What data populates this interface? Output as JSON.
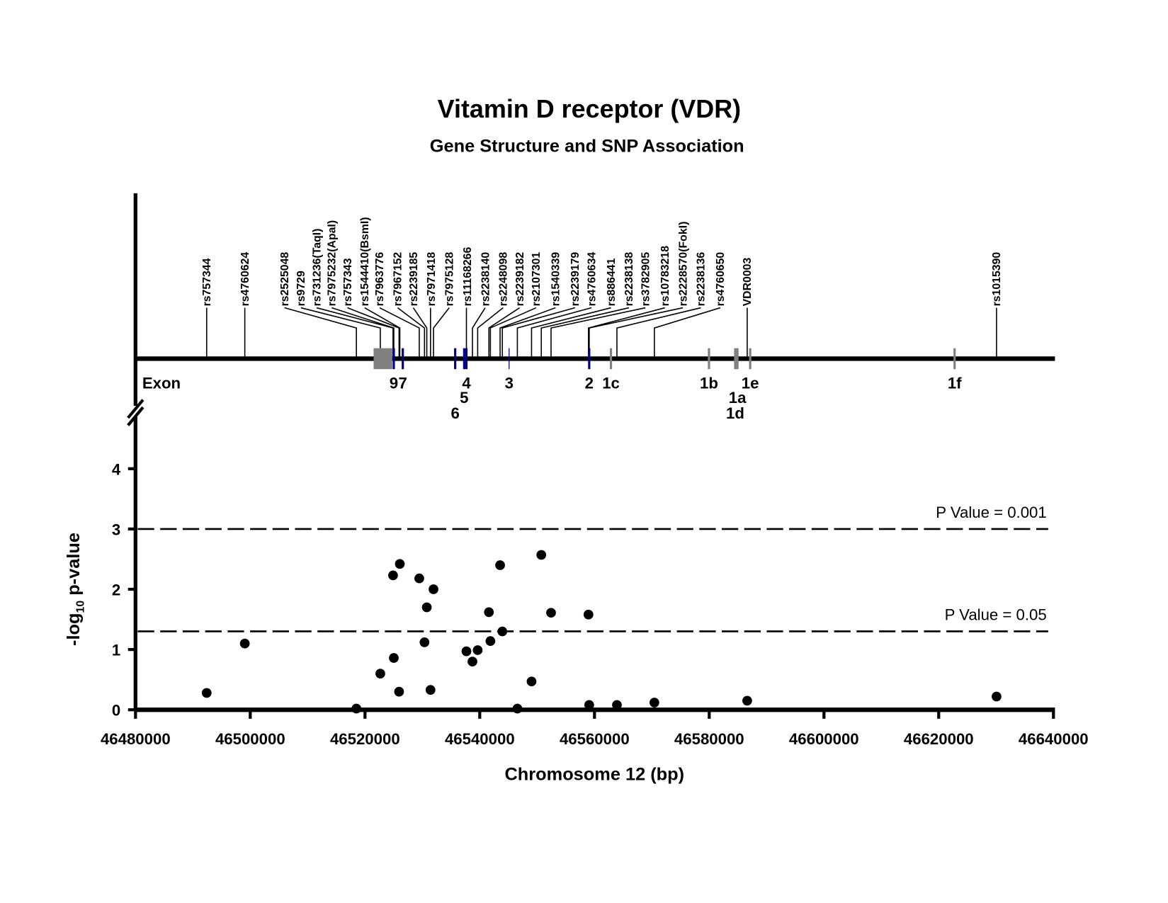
{
  "chart_data": {
    "type": "scatter",
    "title": "Vitamin D receptor (VDR)",
    "subtitle": "Gene Structure and SNP Association",
    "xlabel": "Chromosome 12 (bp)",
    "ylabel_main": "-log",
    "ylabel_sub": "10",
    "ylabel_rest": " p-value",
    "xlim": [
      46480000,
      46640000
    ],
    "ylim": [
      0,
      4.5
    ],
    "x_ticks": [
      46480000,
      46500000,
      46520000,
      46540000,
      46560000,
      46580000,
      46600000,
      46620000,
      46640000
    ],
    "x_tick_labels": [
      "46480000",
      "46500000",
      "46520000",
      "46540000",
      "46560000",
      "46580000",
      "46600000",
      "46620000",
      "46640000"
    ],
    "y_ticks": [
      0,
      1,
      2,
      3,
      4
    ],
    "y_tick_labels": [
      "0",
      "1",
      "2",
      "3",
      "4"
    ],
    "thresholds": [
      {
        "label": "P Value = 0.001",
        "y": 3.0
      },
      {
        "label": "P Value = 0.05",
        "y": 1.301
      }
    ],
    "points": [
      {
        "x": 46492400,
        "y": 0.28
      },
      {
        "x": 46499050,
        "y": 1.1
      },
      {
        "x": 46518500,
        "y": 0.02
      },
      {
        "x": 46522670,
        "y": 0.6
      },
      {
        "x": 46524890,
        "y": 2.23
      },
      {
        "x": 46525020,
        "y": 0.86
      },
      {
        "x": 46525940,
        "y": 0.3
      },
      {
        "x": 46526070,
        "y": 2.42
      },
      {
        "x": 46529460,
        "y": 2.18
      },
      {
        "x": 46530370,
        "y": 1.12
      },
      {
        "x": 46530770,
        "y": 1.7
      },
      {
        "x": 46531420,
        "y": 0.33
      },
      {
        "x": 46531940,
        "y": 2.0
      },
      {
        "x": 46537680,
        "y": 0.97
      },
      {
        "x": 46538730,
        "y": 0.8
      },
      {
        "x": 46539640,
        "y": 0.99
      },
      {
        "x": 46541600,
        "y": 1.62
      },
      {
        "x": 46541860,
        "y": 1.14
      },
      {
        "x": 46543550,
        "y": 2.4
      },
      {
        "x": 46543940,
        "y": 1.3
      },
      {
        "x": 46546560,
        "y": 0.02
      },
      {
        "x": 46549030,
        "y": 0.47
      },
      {
        "x": 46550730,
        "y": 2.57
      },
      {
        "x": 46552430,
        "y": 1.61
      },
      {
        "x": 46558950,
        "y": 1.58
      },
      {
        "x": 46559080,
        "y": 0.08
      },
      {
        "x": 46563910,
        "y": 0.08
      },
      {
        "x": 46570440,
        "y": 0.12
      },
      {
        "x": 46586620,
        "y": 0.15
      },
      {
        "x": 46630080,
        "y": 0.22
      }
    ],
    "snps": [
      {
        "name": "rs757344",
        "x": 46492400
      },
      {
        "name": "rs4760624",
        "x": 46499050
      },
      {
        "name": "rs2525048",
        "x": 46518500
      },
      {
        "name": "rs9729",
        "x": 46522670
      },
      {
        "name": "rs731236(TaqI)",
        "x": 46524890
      },
      {
        "name": "rs7975232(ApaI)",
        "x": 46525020
      },
      {
        "name": "rs757343",
        "x": 46525940
      },
      {
        "name": "rs1544410(BsmI)",
        "x": 46526070
      },
      {
        "name": "rs7963776",
        "x": 46529460
      },
      {
        "name": "rs7967152",
        "x": 46530370
      },
      {
        "name": "rs2239185",
        "x": 46530770
      },
      {
        "name": "rs7971418",
        "x": 46531420
      },
      {
        "name": "rs7975128",
        "x": 46531940
      },
      {
        "name": "rs11168266",
        "x": 46537680
      },
      {
        "name": "rs2238140",
        "x": 46538730
      },
      {
        "name": "rs2248098",
        "x": 46539640
      },
      {
        "name": "rs2239182",
        "x": 46541600
      },
      {
        "name": "rs2107301",
        "x": 46541860
      },
      {
        "name": "rs1540339",
        "x": 46543550
      },
      {
        "name": "rs2239179",
        "x": 46543940
      },
      {
        "name": "rs4760634",
        "x": 46546560
      },
      {
        "name": "rs886441",
        "x": 46549030
      },
      {
        "name": "rs2238138",
        "x": 46550730
      },
      {
        "name": "rs3782905",
        "x": 46552430
      },
      {
        "name": "rs10783218",
        "x": 46558950
      },
      {
        "name": "rs2228570(FokI)",
        "x": 46559080
      },
      {
        "name": "rs2238136",
        "x": 46563910
      },
      {
        "name": "rs4760650",
        "x": 46570440
      },
      {
        "name": "VDR0003",
        "x": 46586620
      },
      {
        "name": "rs1015390",
        "x": 46630080
      }
    ],
    "exon_track_label": "Exon",
    "exon_block": {
      "start": 46521500,
      "end": 46524760,
      "color": "#808080"
    },
    "exons": [
      {
        "label": "9",
        "x": 46525020,
        "color": "#000080",
        "row": 1
      },
      {
        "label": "7",
        "x": 46526590,
        "color": "#000080",
        "row": 1
      },
      {
        "label": "6",
        "x": 46535720,
        "color": "#000080",
        "row": 3
      },
      {
        "label": "5",
        "x": 46537290,
        "color": "#000080",
        "row": 2
      },
      {
        "label": "4",
        "x": 46537680,
        "color": "#000080",
        "row": 1
      },
      {
        "label": "3",
        "x": 46545120,
        "color": "#000080",
        "row": 1
      },
      {
        "label": "2",
        "x": 46559080,
        "color": "#000080",
        "row": 1
      },
      {
        "label": "1c",
        "x": 46562870,
        "color": "#808080",
        "row": 1
      },
      {
        "label": "1b",
        "x": 46579960,
        "color": "#808080",
        "row": 1
      },
      {
        "label": "1d",
        "x": 46584530,
        "color": "#808080",
        "row": 3
      },
      {
        "label": "1a",
        "x": 46584920,
        "color": "#808080",
        "row": 2
      },
      {
        "label": "1e",
        "x": 46587140,
        "color": "#808080",
        "row": 1
      },
      {
        "label": "1f",
        "x": 46622770,
        "color": "#808080",
        "row": 1
      }
    ]
  }
}
